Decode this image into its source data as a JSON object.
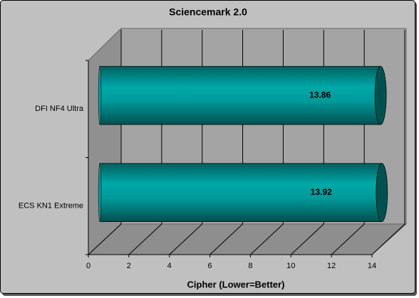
{
  "chart_data": {
    "type": "bar",
    "orientation": "horizontal",
    "title": "Sciencemark 2.0",
    "x_label": "Cipher (Lower=Better)",
    "categories": [
      "DFI NF4 Ultra",
      "ECS KN1 Extreme"
    ],
    "values": [
      13.86,
      13.92
    ],
    "color": "#009999",
    "xlim": [
      0,
      14
    ],
    "xticks": [
      0,
      2,
      4,
      6,
      8,
      10,
      12,
      14
    ],
    "grid": true
  }
}
